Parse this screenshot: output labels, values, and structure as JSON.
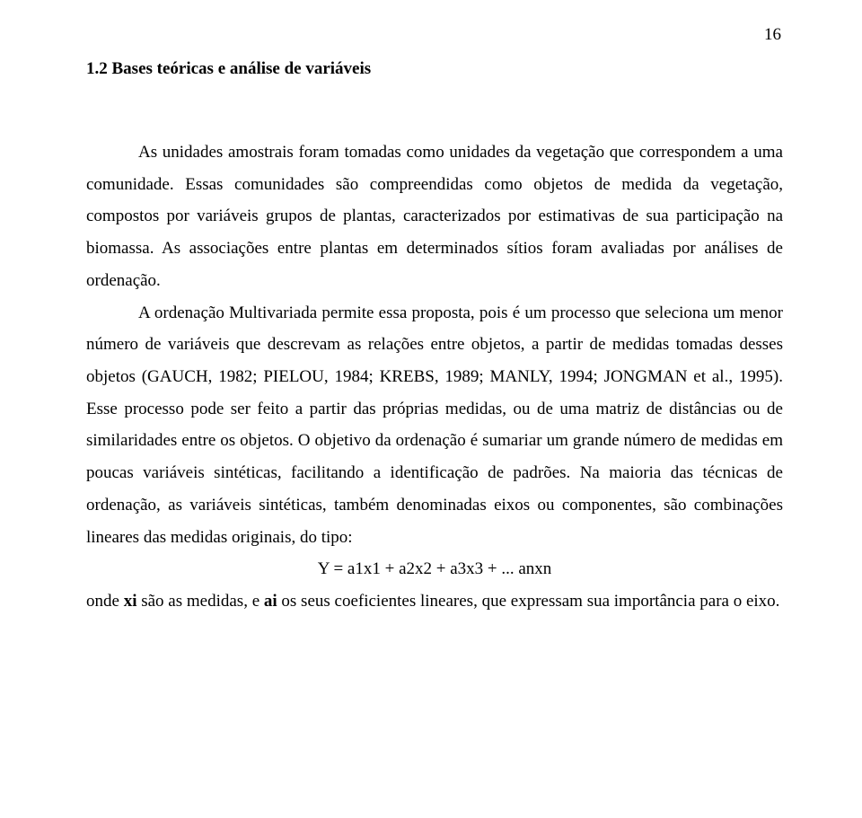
{
  "page_number": "16",
  "heading": "1.2 Bases teóricas e análise de variáveis",
  "paragraph_1": "As unidades amostrais foram tomadas como unidades da vegetação que correspondem a uma comunidade. Essas comunidades são compreendidas como objetos de medida da vegetação, compostos por variáveis grupos de plantas, caracterizados por estimativas de sua participação na biomassa. As associações entre plantas em determinados sítios foram avaliadas por análises de ordenação.",
  "paragraph_2": "A ordenação Multivariada permite essa proposta, pois é um processo que seleciona um menor número de variáveis que descrevam as relações entre objetos, a partir de medidas tomadas desses objetos (GAUCH, 1982; PIELOU, 1984; KREBS, 1989; MANLY, 1994; JONGMAN et al., 1995). Esse processo pode ser feito a partir das próprias medidas, ou de uma matriz de distâncias ou de similaridades entre os objetos. O objetivo da ordenação é sumariar um grande número de medidas em poucas variáveis sintéticas, facilitando a identificação de padrões. Na maioria das técnicas de ordenação, as variáveis sintéticas, também denominadas eixos ou componentes, são combinações lineares das medidas originais, do tipo:",
  "formula": "Y = a1x1 + a2x2 + a3x3 + ... anxn",
  "paragraph_3_part_1": "onde ",
  "paragraph_3_bold_1": "xi",
  "paragraph_3_part_2": " são as medidas, e ",
  "paragraph_3_bold_2": "ai",
  "paragraph_3_part_3": " os seus coeficientes lineares, que expressam sua importância para o eixo."
}
